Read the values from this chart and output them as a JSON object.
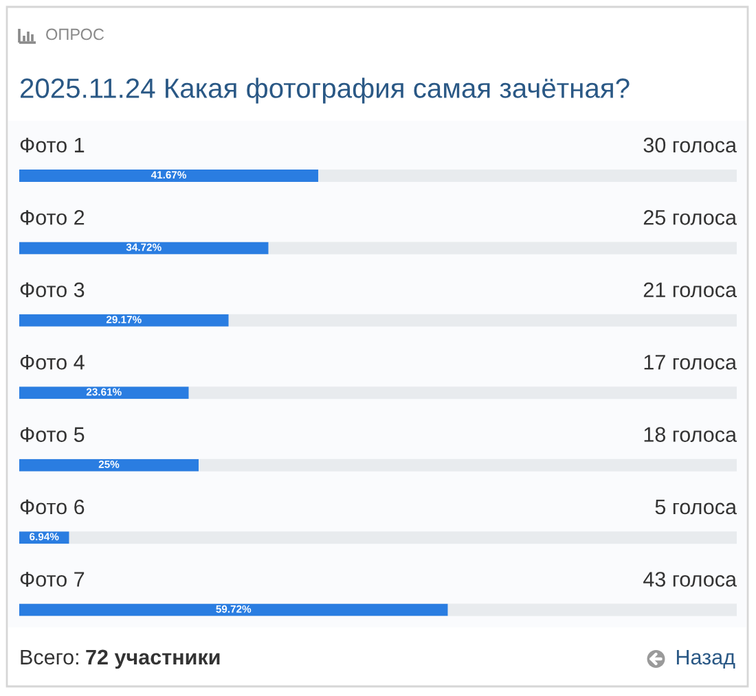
{
  "chart_data": {
    "type": "bar",
    "orientation": "horizontal",
    "subtitle": "ОПРОС",
    "title": "2025.11.24 Какая фотография самая зачётная?",
    "categories": [
      "Фото 1",
      "Фото 2",
      "Фото 3",
      "Фото 4",
      "Фото 5",
      "Фото 6",
      "Фото 7"
    ],
    "values": [
      41.67,
      34.72,
      29.17,
      23.61,
      25,
      6.94,
      59.72
    ],
    "value_labels": [
      "41.67%",
      "34.72%",
      "29.17%",
      "23.61%",
      "25%",
      "6.94%",
      "59.72%"
    ],
    "color": "#2a7de1",
    "xlim": [
      0,
      100
    ],
    "tick_labels": "y",
    "annotations": [
      "30 голоса",
      "25 голоса",
      "21 голоса",
      "17 голоса",
      "18 голоса",
      "5 голоса",
      "43 голоса",
      "Всего:",
      "72 участники",
      "Назад"
    ]
  }
}
